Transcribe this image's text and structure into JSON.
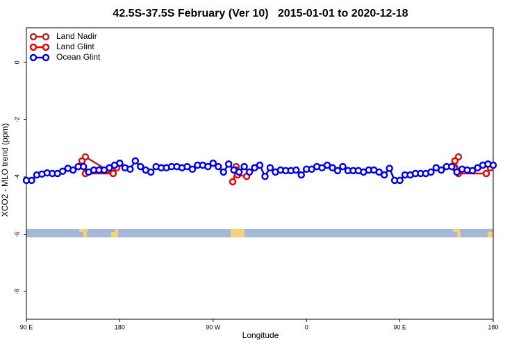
{
  "chart_data": {
    "type": "line",
    "title": "42.5S-37.5S February (Ver 10)   2015-01-01 to 2020-12-18",
    "x_label": "Longitude",
    "y_label": "XCO2 - MLO trend (ppm)",
    "xlim": [
      90,
      540
    ],
    "xticks": [
      {
        "value": 90,
        "label": "90 E"
      },
      180,
      {
        "value": 270,
        "label": "90 W"
      },
      {
        "value": 360,
        "label": "0"
      },
      {
        "value": 450,
        "label": "90 E"
      },
      {
        "value": 540,
        "label": "180"
      }
    ],
    "ylim": [
      -8.97,
      1.21
    ],
    "yticks": [
      0,
      -2,
      -4,
      -6,
      -8
    ],
    "legend": "top-left",
    "series": [
      {
        "name": "Land Nadir",
        "color": "#a52a2a",
        "x": [
          146.9,
          168,
          null,
          292.2,
          null,
          503.1,
          506.5
        ],
        "values": [
          -3.3,
          -3.76,
          null,
          -3.64,
          null,
          -3.68,
          -3.3
        ]
      },
      {
        "name": "Land Glint",
        "color": "#ee0000",
        "x": [
          143.6,
          146.9,
          173.7,
          177,
          null,
          288.9,
          292.2,
          293.6,
          302.3,
          null,
          503.1,
          506.5,
          533.3,
          537.3
        ],
        "values": [
          -3.44,
          -3.88,
          -3.88,
          -3.68,
          null,
          -4.17,
          -3.76,
          -3.93,
          -3.98,
          null,
          -3.44,
          -3.88,
          -3.88,
          -3.68
        ]
      },
      {
        "name": "Ocean Glint",
        "color": "#0000ee",
        "x": [
          90,
          95,
          100,
          105,
          110,
          115,
          120,
          125,
          130,
          135,
          140,
          145,
          150,
          155,
          160,
          165,
          170,
          175,
          180,
          185,
          190,
          195,
          200,
          205,
          210,
          215,
          220,
          225,
          230,
          235,
          240,
          245,
          250,
          255,
          260,
          265,
          270,
          275,
          280,
          285,
          290,
          295,
          300,
          305,
          310,
          315,
          320,
          325,
          330,
          335,
          340,
          345,
          350,
          355,
          360,
          365,
          370,
          375,
          380,
          385,
          390,
          395,
          400,
          405,
          410,
          415,
          420,
          425,
          430,
          435,
          440,
          445,
          450,
          455,
          460,
          465,
          470,
          475,
          480,
          485,
          490,
          495,
          500,
          505,
          510,
          515,
          520,
          525,
          530,
          535,
          540
        ],
        "values": [
          -4.12,
          -4.12,
          -3.93,
          -3.9,
          -3.86,
          -3.88,
          -3.88,
          -3.8,
          -3.7,
          -3.76,
          -3.64,
          -3.64,
          -3.83,
          -3.76,
          -3.76,
          -3.76,
          -3.68,
          -3.59,
          -3.52,
          -3.68,
          -3.73,
          -3.44,
          -3.64,
          -3.76,
          -3.83,
          -3.64,
          -3.68,
          -3.68,
          -3.64,
          -3.64,
          -3.68,
          -3.64,
          -3.73,
          -3.59,
          -3.59,
          -3.64,
          -3.52,
          -3.64,
          -3.83,
          -3.55,
          -3.76,
          -3.83,
          -3.64,
          -3.83,
          -3.68,
          -3.59,
          -3.98,
          -3.68,
          -3.83,
          -3.76,
          -3.78,
          -3.78,
          -3.76,
          -3.93,
          -3.73,
          -3.73,
          -3.64,
          -3.68,
          -3.59,
          -3.68,
          -3.78,
          -3.64,
          -3.78,
          -3.78,
          -3.78,
          -3.83,
          -3.76,
          -3.76,
          -3.83,
          -3.93,
          -3.7,
          -4.12,
          -4.12,
          -3.93,
          -3.93,
          -3.88,
          -3.88,
          -3.88,
          -3.83,
          -3.68,
          -3.76,
          -3.64,
          -3.64,
          -3.83,
          -3.73,
          -3.76,
          -3.78,
          -3.68,
          -3.59,
          -3.55,
          -3.59
        ]
      }
    ]
  }
}
